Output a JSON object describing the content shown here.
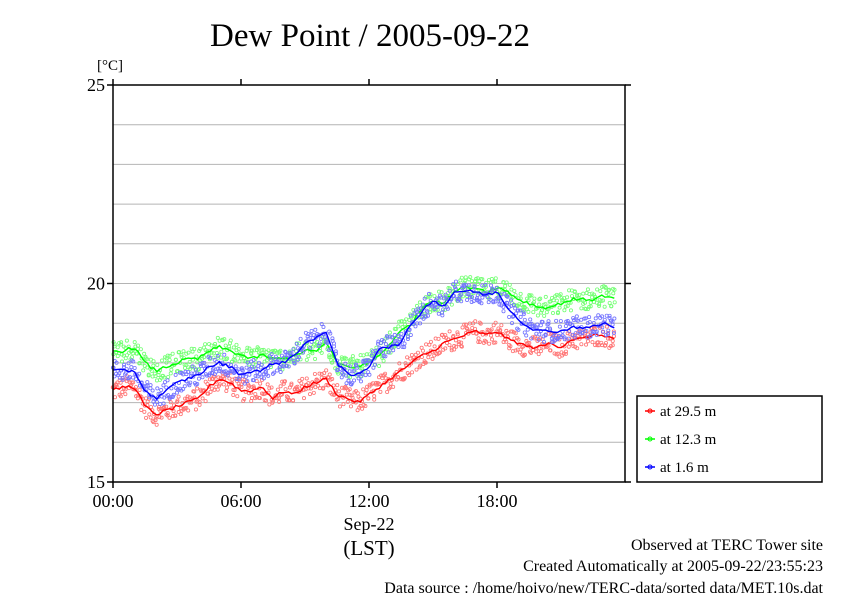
{
  "chart_data": {
    "type": "scatter",
    "title": "Dew Point / 2005-09-22",
    "y_unit": "[°C]",
    "ylim": [
      15,
      25
    ],
    "y_ticks": [
      {
        "value": 15,
        "label": "15"
      },
      {
        "value": 20,
        "label": "20"
      },
      {
        "value": 25,
        "label": "25"
      }
    ],
    "y_gridlines": [
      16,
      17,
      18,
      19,
      20,
      21,
      22,
      23,
      24
    ],
    "xlim": [
      0,
      24
    ],
    "x_ticks": [
      {
        "value": 0,
        "label": "00:00"
      },
      {
        "value": 6,
        "label": "06:00"
      },
      {
        "value": 12,
        "label": "12:00"
      },
      {
        "value": 18,
        "label": "18:00"
      }
    ],
    "x_date_label": "Sep-22",
    "x_axis_label": "(LST)",
    "grid": "horizontal",
    "legend_position": "right",
    "series": [
      {
        "name": "at 29.5 m",
        "color": "#ff0000",
        "x": [
          0,
          0.5,
          1,
          1.5,
          2,
          2.5,
          3,
          3.5,
          4,
          4.5,
          5,
          5.5,
          6,
          6.5,
          7,
          7.5,
          8,
          8.5,
          9,
          9.5,
          10,
          10.5,
          11,
          11.5,
          12,
          12.5,
          13,
          13.5,
          14,
          14.5,
          15,
          15.5,
          16,
          16.5,
          17,
          17.5,
          18,
          18.5,
          19,
          19.5,
          20,
          20.5,
          21,
          21.5,
          22,
          22.5,
          23,
          23.5
        ],
        "values": [
          17.3,
          17.4,
          17.4,
          16.9,
          16.7,
          16.8,
          16.9,
          17.0,
          17.1,
          17.4,
          17.6,
          17.5,
          17.3,
          17.3,
          17.4,
          17.1,
          17.3,
          17.2,
          17.4,
          17.5,
          17.6,
          17.2,
          17.1,
          17.0,
          17.2,
          17.4,
          17.6,
          17.8,
          18.0,
          18.2,
          18.3,
          18.5,
          18.6,
          18.7,
          18.8,
          18.7,
          18.8,
          18.6,
          18.5,
          18.4,
          18.4,
          18.5,
          18.4,
          18.6,
          18.6,
          18.7,
          18.7,
          18.6
        ]
      },
      {
        "name": "at 12.3 m",
        "color": "#00ff00",
        "x": [
          0,
          0.5,
          1,
          1.5,
          2,
          2.5,
          3,
          3.5,
          4,
          4.5,
          5,
          5.5,
          6,
          6.5,
          7,
          7.5,
          8,
          8.5,
          9,
          9.5,
          10,
          10.5,
          11,
          11.5,
          12,
          12.5,
          13,
          13.5,
          14,
          14.5,
          15,
          15.5,
          16,
          16.5,
          17,
          17.5,
          18,
          18.5,
          19,
          19.5,
          20,
          20.5,
          21,
          21.5,
          22,
          22.5,
          23,
          23.5
        ],
        "values": [
          18.3,
          18.3,
          18.4,
          18.0,
          17.8,
          17.9,
          18.0,
          18.1,
          18.1,
          18.3,
          18.4,
          18.3,
          18.2,
          18.1,
          18.2,
          18.1,
          18.1,
          18.2,
          18.3,
          18.3,
          18.5,
          18.0,
          17.9,
          17.9,
          18.0,
          18.2,
          18.5,
          18.8,
          19.0,
          19.4,
          19.6,
          19.5,
          19.8,
          19.9,
          19.9,
          19.8,
          19.9,
          19.8,
          19.6,
          19.5,
          19.4,
          19.4,
          19.5,
          19.6,
          19.6,
          19.6,
          19.7,
          19.6
        ]
      },
      {
        "name": "at 1.6 m",
        "color": "#0000ff",
        "x": [
          0,
          0.5,
          1,
          1.5,
          2,
          2.5,
          3,
          3.5,
          4,
          4.5,
          5,
          5.5,
          6,
          6.5,
          7,
          7.5,
          8,
          8.5,
          9,
          9.5,
          10,
          10.5,
          11,
          11.5,
          12,
          12.5,
          13,
          13.5,
          14,
          14.5,
          15,
          15.5,
          16,
          16.5,
          17,
          17.5,
          18,
          18.5,
          19,
          19.5,
          20,
          20.5,
          21,
          21.5,
          22,
          22.5,
          23,
          23.5
        ],
        "values": [
          17.8,
          17.8,
          17.8,
          17.3,
          17.1,
          17.3,
          17.5,
          17.6,
          17.7,
          17.9,
          18.0,
          17.9,
          17.7,
          17.8,
          17.8,
          18.0,
          18.0,
          18.2,
          18.5,
          18.6,
          18.8,
          18.0,
          17.7,
          17.7,
          17.9,
          18.4,
          18.4,
          18.5,
          19.0,
          19.3,
          19.6,
          19.4,
          19.8,
          19.8,
          19.8,
          19.7,
          19.8,
          19.4,
          19.1,
          18.9,
          18.8,
          18.8,
          18.8,
          18.9,
          18.9,
          18.9,
          19.0,
          18.9
        ]
      }
    ]
  },
  "footer": {
    "observed": "Observed at TERC Tower site",
    "created": "Created Automatically at 2005-09-22/23:55:23",
    "source": "Data source : /home/hoivo/new/TERC-data/sorted  data/MET.10s.dat"
  }
}
